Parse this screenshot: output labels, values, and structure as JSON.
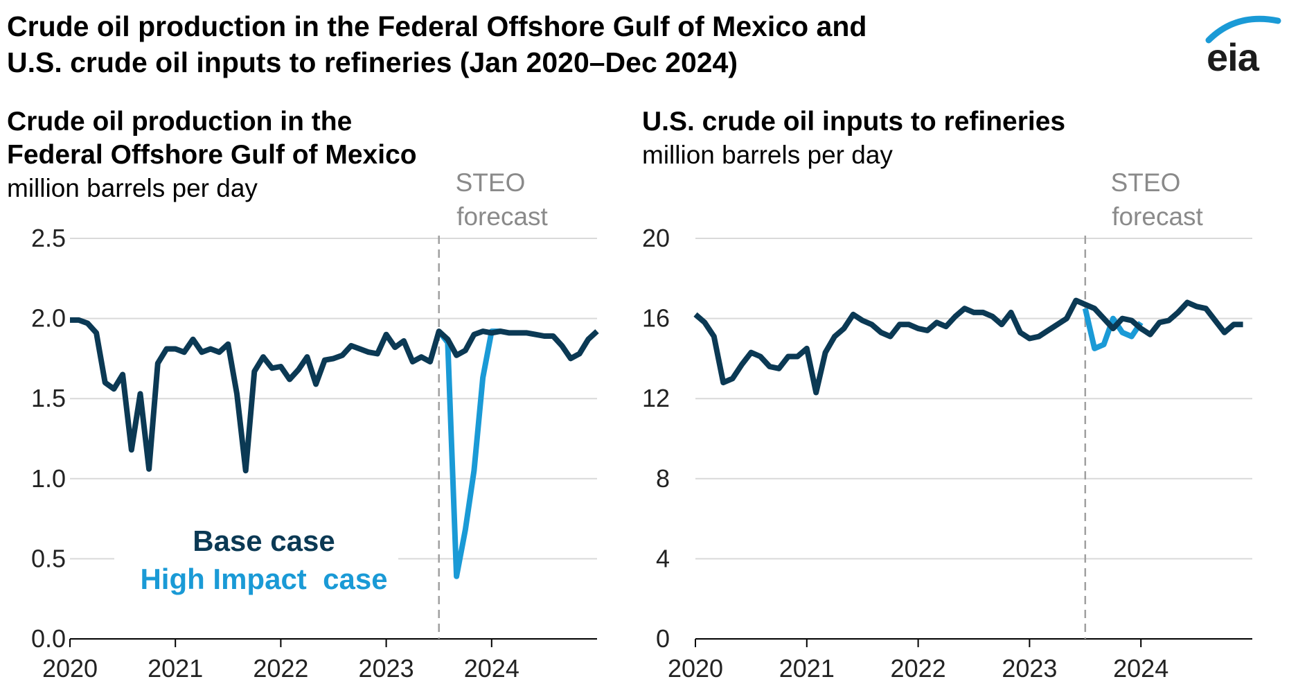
{
  "header": {
    "title_line1": "Crude oil production in the Federal Offshore Gulf of Mexico and",
    "title_line2": "U.S. crude oil inputs to refineries (Jan 2020–Dec 2024)",
    "logo_text": "eia"
  },
  "colors": {
    "base": "#0b3954",
    "high": "#1a9ad6",
    "grid": "#d9d9d9",
    "forecast_line": "#a0a0a0"
  },
  "chart_data": [
    {
      "type": "line",
      "title_line1": "Crude oil production in the",
      "title_line2": "Federal Offshore Gulf of Mexico",
      "ylabel": "million barrels per day",
      "ylim": [
        0,
        2.5
      ],
      "yticks": [
        "0.0",
        "0.5",
        "1.0",
        "1.5",
        "2.0",
        "2.5"
      ],
      "ytick_values": [
        0,
        0.5,
        1.0,
        1.5,
        2.0,
        2.5
      ],
      "xticks": [
        "2020",
        "2021",
        "2022",
        "2023",
        "2024"
      ],
      "x_range": [
        "2020-01",
        "2024-12"
      ],
      "forecast_start": "2023-07",
      "forecast_label_line1": "STEO",
      "forecast_label_line2": "forecast",
      "legend": {
        "base": "Base case",
        "high": "High Impact  case"
      },
      "series": [
        {
          "name": "Base case",
          "key": "base",
          "start": "2020-01",
          "values": [
            1.99,
            1.99,
            1.97,
            1.91,
            1.6,
            1.56,
            1.65,
            1.18,
            1.53,
            1.06,
            1.72,
            1.81,
            1.81,
            1.79,
            1.87,
            1.79,
            1.81,
            1.79,
            1.84,
            1.53,
            1.05,
            1.67,
            1.76,
            1.69,
            1.7,
            1.62,
            1.68,
            1.76,
            1.59,
            1.74,
            1.75,
            1.77,
            1.83,
            1.81,
            1.79,
            1.78,
            1.9,
            1.82,
            1.86,
            1.73,
            1.76,
            1.73,
            1.92,
            1.87,
            1.77,
            1.8,
            1.9,
            1.92,
            1.91,
            1.92,
            1.91,
            1.91,
            1.91,
            1.9,
            1.89,
            1.89,
            1.83,
            1.75,
            1.78,
            1.87,
            1.92
          ]
        },
        {
          "name": "High Impact  case",
          "key": "high",
          "start": "2023-07",
          "values": [
            1.92,
            1.85,
            0.39,
            0.68,
            1.05,
            1.63,
            1.92,
            1.92
          ]
        }
      ]
    },
    {
      "type": "line",
      "title_line1": "U.S. crude oil inputs to refineries",
      "ylabel": "million barrels per day",
      "ylim": [
        0,
        20
      ],
      "yticks": [
        "0",
        "4",
        "8",
        "12",
        "16",
        "20"
      ],
      "ytick_values": [
        0,
        4,
        8,
        12,
        16,
        20
      ],
      "xticks": [
        "2020",
        "2021",
        "2022",
        "2023",
        "2024"
      ],
      "x_range": [
        "2020-01",
        "2024-12"
      ],
      "forecast_start": "2023-07",
      "forecast_label_line1": "STEO",
      "forecast_label_line2": "forecast",
      "series": [
        {
          "name": "Base case",
          "key": "base",
          "start": "2020-01",
          "values": [
            16.2,
            15.8,
            15.1,
            12.8,
            13.0,
            13.7,
            14.3,
            14.1,
            13.6,
            13.5,
            14.1,
            14.1,
            14.5,
            12.3,
            14.3,
            15.1,
            15.5,
            16.2,
            15.9,
            15.7,
            15.3,
            15.1,
            15.7,
            15.7,
            15.5,
            15.4,
            15.8,
            15.6,
            16.1,
            16.5,
            16.3,
            16.3,
            16.1,
            15.7,
            16.3,
            15.3,
            15.0,
            15.1,
            15.4,
            15.7,
            16.0,
            16.9,
            16.7,
            16.5,
            16.0,
            15.5,
            16.0,
            15.9,
            15.5,
            15.2,
            15.8,
            15.9,
            16.3,
            16.8,
            16.6,
            16.5,
            15.9,
            15.3,
            15.7,
            15.7
          ]
        },
        {
          "name": "High Impact  case",
          "key": "high",
          "start": "2023-07",
          "values": [
            16.5,
            14.5,
            14.7,
            16.0,
            15.3,
            15.1,
            15.8
          ]
        }
      ]
    }
  ]
}
